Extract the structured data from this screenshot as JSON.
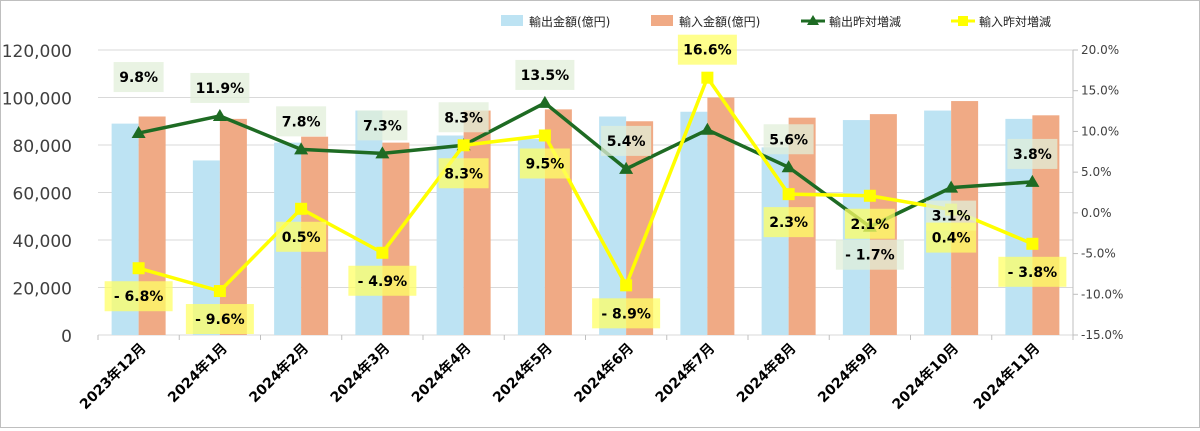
{
  "chart_data": {
    "type": "bar",
    "categories": [
      "2023年12月",
      "2024年1月",
      "2024年2月",
      "2024年3月",
      "2024年4月",
      "2024年5月",
      "2024年6月",
      "2024年7月",
      "2024年8月",
      "2024年9月",
      "2024年10月",
      "2024年11月"
    ],
    "left_axis": {
      "min": 0,
      "max": 120000,
      "step": 20000,
      "tick_labels": [
        "0",
        "20,000",
        "40,000",
        "60,000",
        "80,000",
        "100,000",
        "120,000"
      ]
    },
    "right_axis": {
      "min": -15,
      "max": 20,
      "step": 5,
      "tick_labels": [
        "-15.0%",
        "-10.0%",
        "-5.0%",
        "0.0%",
        "5.0%",
        "10.0%",
        "15.0%",
        "20.0%"
      ]
    },
    "grid": true,
    "legend_position": "top-right",
    "series": [
      {
        "name": "輸出金額(億円)",
        "type": "bar",
        "axis": "left",
        "color": "#bde3f3",
        "values": [
          89000,
          73500,
          81000,
          94500,
          84000,
          82500,
          92000,
          94000,
          79000,
          90500,
          94500,
          91000
        ]
      },
      {
        "name": "輸入金額(億円)",
        "type": "bar",
        "axis": "left",
        "color": "#f0aa85",
        "values": [
          92000,
          91000,
          83500,
          81000,
          94500,
          95000,
          90000,
          100000,
          91500,
          93000,
          98500,
          92500
        ]
      },
      {
        "name": "輸出昨対増減",
        "type": "line",
        "axis": "right",
        "color": "#1e6b23",
        "marker": "triangle",
        "values": [
          9.8,
          11.9,
          7.8,
          7.3,
          8.3,
          13.5,
          5.4,
          10.2,
          5.6,
          -1.7,
          3.1,
          3.8
        ]
      },
      {
        "name": "輸入昨対増減",
        "type": "line",
        "axis": "right",
        "color": "#ffff00",
        "marker": "square",
        "values": [
          -6.8,
          -9.6,
          0.5,
          -4.9,
          8.3,
          9.5,
          -8.9,
          16.6,
          2.3,
          2.1,
          0.4,
          -3.8
        ]
      }
    ],
    "data_labels": {
      "export_yoy": [
        "9.8%",
        "11.9%",
        "7.8%",
        "7.3%",
        "8.3%",
        "13.5%",
        "5.4%",
        "",
        "5.6%",
        "- 1.7%",
        "3.1%",
        "3.8%"
      ],
      "import_yoy": [
        "- 6.8%",
        "- 9.6%",
        "0.5%",
        "- 4.9%",
        "8.3%",
        "9.5%",
        "- 8.9%",
        "16.6%",
        "2.3%",
        "2.1%",
        "0.4%",
        "- 3.8%"
      ]
    },
    "label_colors": {
      "export_bg": "#e2efda",
      "import_bg": "#ffff66"
    }
  }
}
